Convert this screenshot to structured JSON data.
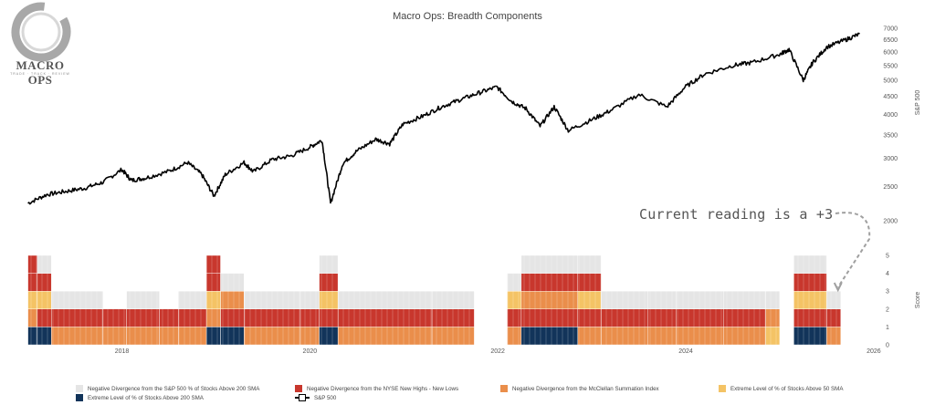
{
  "logo": {
    "text": "MACRO OPS",
    "tagline": "TRADE · TRACK · REVIEW"
  },
  "chart_data": {
    "title": "Macro Ops: Breadth Components",
    "annotation": "Current reading is a +3",
    "colors": {
      "price_line": "#000000",
      "s200_div": "#e5e5e5",
      "hilo_div": "#c8372d",
      "mcclellan": "#ea8e4b",
      "extreme50": "#f4c365",
      "extreme200": "#12345a",
      "arrow": "#a0a0a0"
    },
    "price_series": {
      "type": "line",
      "name": "S&P 500",
      "ylabel": "S&P 500",
      "log_scale": true,
      "y_ticks": [
        2000,
        2500,
        3000,
        3500,
        4000,
        4500,
        5000,
        5500,
        6000,
        6500,
        7000
      ],
      "points": [
        [
          2017.0,
          2240
        ],
        [
          2017.2,
          2370
        ],
        [
          2017.4,
          2420
        ],
        [
          2017.6,
          2470
        ],
        [
          2017.8,
          2570
        ],
        [
          2018.0,
          2790
        ],
        [
          2018.1,
          2600
        ],
        [
          2018.25,
          2640
        ],
        [
          2018.5,
          2760
        ],
        [
          2018.7,
          2920
        ],
        [
          2018.85,
          2700
        ],
        [
          2018.98,
          2350
        ],
        [
          2019.1,
          2700
        ],
        [
          2019.3,
          2920
        ],
        [
          2019.4,
          2750
        ],
        [
          2019.6,
          2980
        ],
        [
          2019.8,
          3050
        ],
        [
          2020.0,
          3230
        ],
        [
          2020.13,
          3380
        ],
        [
          2020.22,
          2240
        ],
        [
          2020.35,
          2900
        ],
        [
          2020.5,
          3150
        ],
        [
          2020.7,
          3400
        ],
        [
          2020.85,
          3300
        ],
        [
          2020.99,
          3750
        ],
        [
          2021.2,
          3950
        ],
        [
          2021.4,
          4200
        ],
        [
          2021.6,
          4400
        ],
        [
          2021.8,
          4600
        ],
        [
          2021.99,
          4780
        ],
        [
          2022.15,
          4350
        ],
        [
          2022.3,
          4150
        ],
        [
          2022.45,
          3700
        ],
        [
          2022.6,
          4200
        ],
        [
          2022.75,
          3600
        ],
        [
          2022.99,
          3850
        ],
        [
          2023.2,
          4100
        ],
        [
          2023.5,
          4550
        ],
        [
          2023.8,
          4200
        ],
        [
          2023.99,
          4770
        ],
        [
          2024.2,
          5200
        ],
        [
          2024.5,
          5500
        ],
        [
          2024.7,
          5600
        ],
        [
          2024.99,
          5900
        ],
        [
          2025.1,
          6100
        ],
        [
          2025.25,
          5000
        ],
        [
          2025.35,
          5600
        ],
        [
          2025.5,
          6200
        ],
        [
          2025.7,
          6500
        ],
        [
          2025.85,
          6750
        ]
      ]
    },
    "score_series": {
      "type": "bar",
      "ylabel": "Score",
      "y_ticks": [
        0,
        1,
        2,
        3,
        4,
        5
      ],
      "x_ticks": [
        2018,
        2020,
        2022,
        2024,
        2026
      ],
      "x_range": [
        2016.8,
        2026.05
      ],
      "current_score": 3,
      "components": [
        "Negative Divergence from the S&P 500 % of Stocks Above 200 SMA",
        "Negative Divergence from the NYSE New Highs - New Lows",
        "Negative Divergence from the McClellan Summation Index",
        "Extreme Level of % of Stocks Above 50 SMA",
        "Extreme Level of % of Stocks Above 200 SMA"
      ],
      "stacks": [
        [
          2017.0,
          2017.1,
          [
            "e200",
            "mcc",
            "ext50",
            "hilo",
            "hilo"
          ]
        ],
        [
          2017.1,
          2017.25,
          [
            "e200",
            "hilo",
            "ext50",
            "hilo",
            "s200"
          ]
        ],
        [
          2017.25,
          2017.8,
          [
            "mcc",
            "hilo",
            "s200"
          ]
        ],
        [
          2017.8,
          2018.05,
          [
            "mcc",
            "hilo"
          ]
        ],
        [
          2018.05,
          2018.4,
          [
            "mcc",
            "hilo",
            "s200"
          ]
        ],
        [
          2018.4,
          2018.6,
          [
            "mcc",
            "hilo"
          ]
        ],
        [
          2018.6,
          2018.9,
          [
            "mcc",
            "hilo",
            "s200"
          ]
        ],
        [
          2018.9,
          2019.05,
          [
            "e200",
            "mcc",
            "ext50",
            "hilo",
            "hilo"
          ]
        ],
        [
          2019.05,
          2019.3,
          [
            "e200",
            "hilo",
            "mcc",
            "s200"
          ]
        ],
        [
          2019.3,
          2019.9,
          [
            "mcc",
            "hilo",
            "s200"
          ]
        ],
        [
          2019.9,
          2020.1,
          [
            "mcc",
            "hilo",
            "s200"
          ]
        ],
        [
          2020.1,
          2020.3,
          [
            "e200",
            "hilo",
            "ext50",
            "hilo",
            "s200"
          ]
        ],
        [
          2020.3,
          2021.3,
          [
            "mcc",
            "hilo",
            "s200"
          ]
        ],
        [
          2021.3,
          2021.75,
          [
            "mcc",
            "hilo",
            "s200"
          ]
        ],
        [
          2022.1,
          2022.25,
          [
            "mcc",
            "hilo",
            "ext50",
            "s200"
          ]
        ],
        [
          2022.25,
          2022.85,
          [
            "e200",
            "hilo",
            "mcc",
            "hilo",
            "s200"
          ]
        ],
        [
          2022.85,
          2023.1,
          [
            "mcc",
            "hilo",
            "ext50",
            "hilo",
            "s200"
          ]
        ],
        [
          2023.1,
          2023.6,
          [
            "mcc",
            "hilo",
            "s200"
          ]
        ],
        [
          2023.6,
          2023.9,
          [
            "mcc",
            "hilo",
            "s200"
          ]
        ],
        [
          2023.9,
          2024.4,
          [
            "mcc",
            "hilo",
            "s200"
          ]
        ],
        [
          2024.4,
          2024.85,
          [
            "mcc",
            "hilo",
            "s200"
          ]
        ],
        [
          2024.85,
          2025.0,
          [
            "ext50",
            "mcc",
            "s200"
          ]
        ],
        [
          2025.15,
          2025.5,
          [
            "e200",
            "hilo",
            "ext50",
            "hilo",
            "s200"
          ]
        ],
        [
          2025.5,
          2025.65,
          [
            "mcc",
            "hilo",
            "s200"
          ]
        ]
      ]
    },
    "legend": [
      {
        "key": "s200_div",
        "label": "Negative Divergence from the S&P 500 % of Stocks Above 200 SMA"
      },
      {
        "key": "hilo_div",
        "label": "Negative Divergence from the NYSE New Highs - New Lows"
      },
      {
        "key": "mcclellan",
        "label": "Negative Divergence from the McClellan Summation Index"
      },
      {
        "key": "extreme50",
        "label": "Extreme Level of % of Stocks Above 50 SMA"
      },
      {
        "key": "extreme200",
        "label": "Extreme Level of % of Stocks Above 200 SMA"
      },
      {
        "key": "price_line",
        "label": "S&P 500"
      }
    ]
  }
}
